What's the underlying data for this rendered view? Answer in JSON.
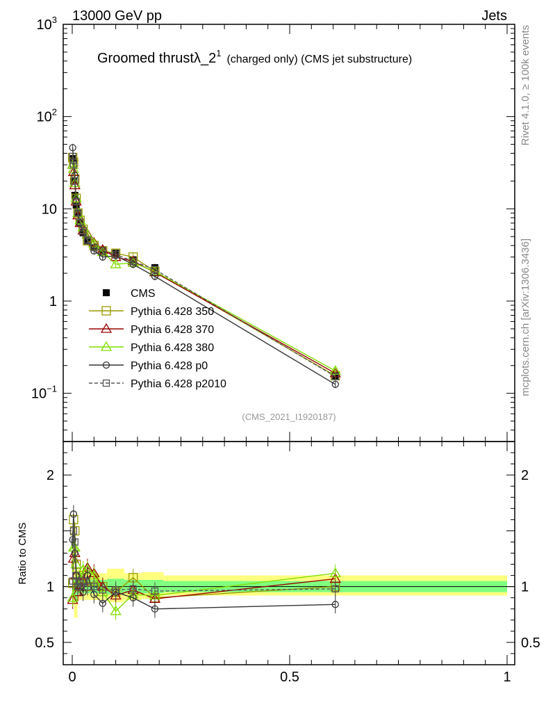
{
  "header": {
    "left": "13000 GeV pp",
    "right": "Jets"
  },
  "side_labels": {
    "rivet": "Rivet 4.1.0, ≥ 100k events",
    "mcplots": "mcplots.cern.ch [arXiv:1306.3436]"
  },
  "colors": {
    "cms": "#000000",
    "p350": "#999900",
    "p370": "#990000",
    "p380": "#80dd00",
    "p0": "#333333",
    "p2010": "#555555",
    "band_yellow": "#ffff80",
    "band_green": "#80ff80"
  },
  "chart_data": [
    {
      "type": "line",
      "panel": "main",
      "title": "Groomed thrust",
      "title_symbol": "λ_2",
      "title_superscript": "1",
      "title_suffix": "(charged only) (CMS jet substructure)",
      "analysis_id": "(CMS_2021_I1920187)",
      "xlim": [
        0,
        1
      ],
      "ylim": [
        0.03,
        1000
      ],
      "yscale": "log",
      "y_tick_labels": [
        {
          "value": 1000,
          "base": "10",
          "exp": "3"
        },
        {
          "value": 100,
          "base": "10",
          "exp": "2"
        },
        {
          "value": 10,
          "label": "10"
        },
        {
          "value": 1,
          "label": "1"
        },
        {
          "value": 0.1,
          "base": "10",
          "exp": "−1"
        }
      ],
      "x": [
        0.001,
        0.003,
        0.006,
        0.009,
        0.013,
        0.018,
        0.025,
        0.035,
        0.05,
        0.07,
        0.1,
        0.14,
        0.19,
        0.605
      ],
      "series": [
        {
          "name": "CMS",
          "key": "cms",
          "marker": "square-filled",
          "values": [
            35,
            20,
            14,
            11,
            9,
            7,
            5.5,
            4.5,
            3.8,
            3.6,
            3.3,
            2.8,
            2.3,
            0.155
          ]
        },
        {
          "name": "Pythia 6.428 350",
          "key": "p350",
          "marker": "square-open",
          "values": [
            36,
            32,
            21,
            13,
            9,
            7.5,
            6,
            4.5,
            4,
            3.5,
            3.3,
            3.0,
            2.1,
            0.155
          ]
        },
        {
          "name": "Pythia 6.428 370",
          "key": "p370",
          "marker": "triangle-open",
          "values": [
            30,
            25,
            18,
            12,
            8.5,
            7,
            5.8,
            5.3,
            4.3,
            3.6,
            3.0,
            2.7,
            2.05,
            0.165
          ]
        },
        {
          "name": "Pythia 6.428 380",
          "key": "p380",
          "marker": "triangle-open",
          "values": [
            30,
            27,
            19,
            13,
            9,
            7.5,
            6.3,
            5.2,
            4.2,
            3.4,
            2.5,
            2.6,
            2.1,
            0.175
          ]
        },
        {
          "name": "Pythia 6.428 p0",
          "key": "p0",
          "marker": "circle-open",
          "values": [
            46,
            33,
            23,
            12,
            9,
            7,
            5.5,
            4.5,
            3.5,
            3.0,
            3.1,
            2.5,
            1.85,
            0.125
          ]
        },
        {
          "name": "Pythia 6.428 p2010",
          "key": "p2010",
          "marker": "square-open-dashed",
          "values": [
            37,
            30,
            20,
            12,
            9,
            7.2,
            5.8,
            4.6,
            3.8,
            3.5,
            3.2,
            2.7,
            2.2,
            0.152
          ]
        }
      ],
      "legend_position": "center-left"
    },
    {
      "type": "line",
      "panel": "ratio",
      "ylabel": "Ratio to CMS",
      "xlim": [
        0,
        1
      ],
      "ylim": [
        0.3,
        2.3
      ],
      "y_tick_labels": [
        {
          "value": 2,
          "label": "2"
        },
        {
          "value": 1,
          "label": "1"
        },
        {
          "value": 0.5,
          "label": "0.5"
        }
      ],
      "x_tick_labels": [
        {
          "value": 0,
          "label": "0"
        },
        {
          "value": 0.5,
          "label": "0.5"
        },
        {
          "value": 1,
          "label": "1"
        }
      ],
      "x": [
        0.001,
        0.003,
        0.006,
        0.009,
        0.013,
        0.018,
        0.025,
        0.035,
        0.05,
        0.07,
        0.1,
        0.14,
        0.19,
        0.605
      ],
      "bands": [
        {
          "x0": 0.0,
          "x1": 0.004,
          "yellow": [
            0.85,
            1.2
          ],
          "green": [
            0.93,
            1.07
          ]
        },
        {
          "x0": 0.004,
          "x1": 0.012,
          "yellow": [
            0.72,
            1.15
          ],
          "green": [
            0.86,
            1.08
          ]
        },
        {
          "x0": 0.012,
          "x1": 0.03,
          "yellow": [
            0.88,
            1.15
          ],
          "green": [
            0.94,
            1.06
          ]
        },
        {
          "x0": 0.03,
          "x1": 0.08,
          "yellow": [
            0.88,
            1.12
          ],
          "green": [
            0.94,
            1.06
          ]
        },
        {
          "x0": 0.08,
          "x1": 0.12,
          "yellow": [
            0.86,
            1.16
          ],
          "green": [
            0.93,
            1.07
          ]
        },
        {
          "x0": 0.12,
          "x1": 0.16,
          "yellow": [
            0.88,
            1.12
          ],
          "green": [
            0.94,
            1.06
          ]
        },
        {
          "x0": 0.16,
          "x1": 0.21,
          "yellow": [
            0.89,
            1.13
          ],
          "green": [
            0.94,
            1.06
          ]
        },
        {
          "x0": 0.21,
          "x1": 1.0,
          "yellow": [
            0.92,
            1.1
          ],
          "green": [
            0.95,
            1.05
          ]
        }
      ],
      "series": [
        {
          "name": "Pythia 6.428 350",
          "key": "p350",
          "marker": "square-open",
          "values": [
            1.03,
            1.6,
            1.5,
            1.2,
            1.0,
            1.08,
            1.1,
            1.0,
            1.05,
            1.0,
            0.95,
            1.08,
            0.9,
            1.0
          ]
        },
        {
          "name": "Pythia 6.428 370",
          "key": "p370",
          "marker": "triangle-open",
          "values": [
            0.88,
            1.25,
            1.3,
            1.1,
            0.95,
            1.0,
            1.05,
            1.17,
            1.12,
            1.0,
            0.92,
            0.97,
            0.89,
            1.07
          ]
        },
        {
          "name": "Pythia 6.428 380",
          "key": "p380",
          "marker": "triangle-open",
          "values": [
            0.9,
            1.35,
            1.35,
            1.2,
            1.0,
            1.07,
            1.15,
            1.15,
            1.1,
            0.95,
            0.78,
            0.93,
            0.92,
            1.12
          ]
        },
        {
          "name": "Pythia 6.428 p0",
          "key": "p0",
          "marker": "circle-open",
          "values": [
            1.42,
            1.65,
            1.3,
            1.1,
            1.0,
            1.0,
            0.95,
            1.1,
            0.93,
            0.85,
            0.95,
            0.9,
            0.8,
            0.84
          ]
        },
        {
          "name": "Pythia 6.428 p2010",
          "key": "p2010",
          "marker": "square-open-dashed",
          "values": [
            1.05,
            1.5,
            1.4,
            1.1,
            1.0,
            1.03,
            1.05,
            1.0,
            1.0,
            0.97,
            0.97,
            0.98,
            0.96,
            0.98
          ]
        }
      ]
    }
  ]
}
